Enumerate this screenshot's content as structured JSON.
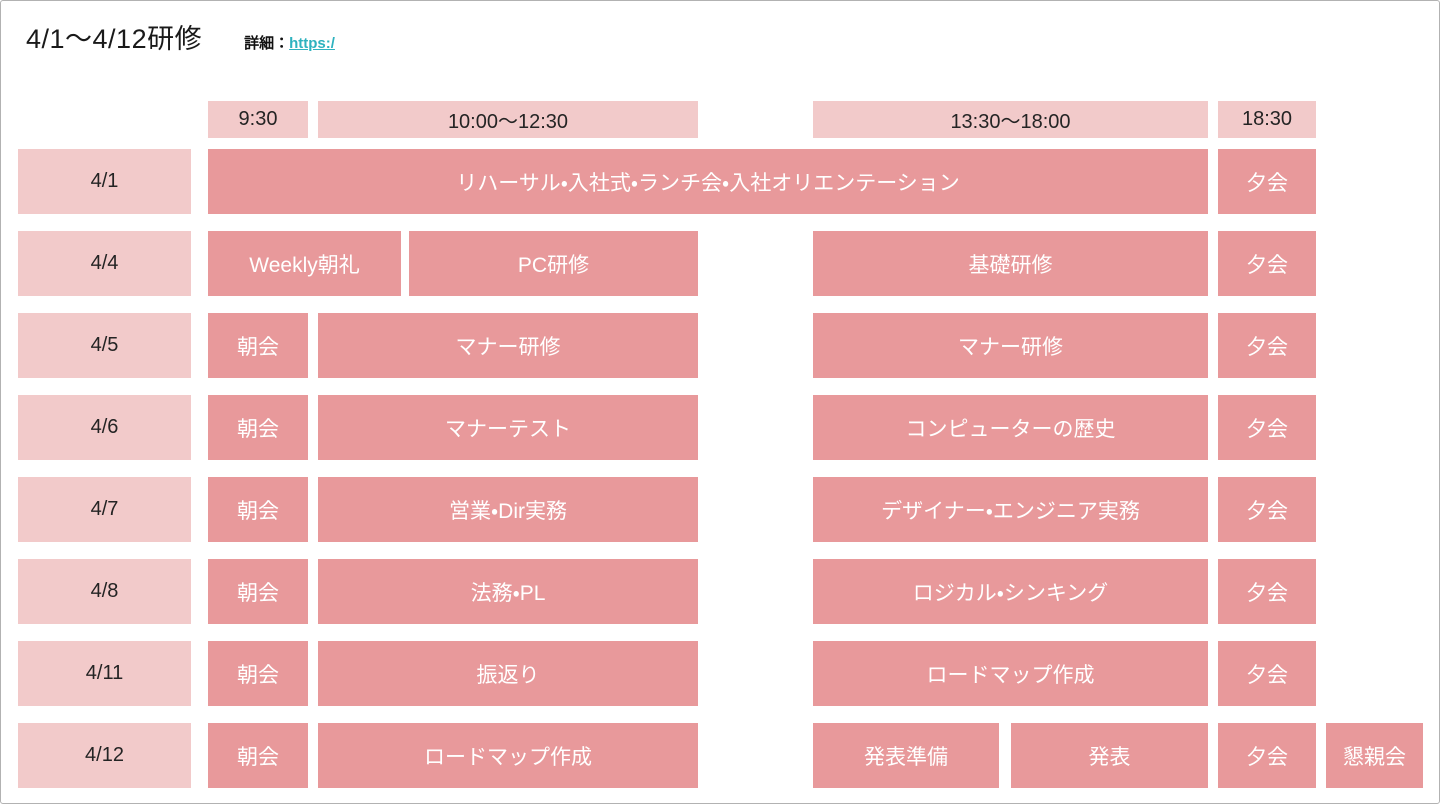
{
  "page": {
    "title": "4/1～4/12研修",
    "detail_label": "詳細：",
    "detail_link": "https:/"
  },
  "palette": {
    "cell_light": "#f2caca",
    "cell_dark": "#e8999b",
    "link_color": "#2eb2bf"
  },
  "header": {
    "cells": [
      {
        "label": "9:30",
        "slot": "morning"
      },
      {
        "label": "10:00～12:30",
        "slot": "am"
      },
      {
        "label": "13:30～18:00",
        "slot": "pm"
      },
      {
        "label": "18:30",
        "slot": "evening"
      }
    ]
  },
  "rows": [
    {
      "date": "4/1",
      "events": [
        {
          "label": "リハーサル・入社式・ランチ会・入社オリエンテーション",
          "slot": "all_day"
        },
        {
          "label": "夕会",
          "slot": "evening"
        }
      ]
    },
    {
      "date": "4/4",
      "events": [
        {
          "label": "Weekly朝礼",
          "slot": "morning_wide"
        },
        {
          "label": "PC研修",
          "slot": "am_short"
        },
        {
          "label": "基礎研修",
          "slot": "pm"
        },
        {
          "label": "夕会",
          "slot": "evening"
        }
      ]
    },
    {
      "date": "4/5",
      "events": [
        {
          "label": "朝会",
          "slot": "morning"
        },
        {
          "label": "マナー研修",
          "slot": "am"
        },
        {
          "label": "マナー研修",
          "slot": "pm"
        },
        {
          "label": "夕会",
          "slot": "evening"
        }
      ]
    },
    {
      "date": "4/6",
      "events": [
        {
          "label": "朝会",
          "slot": "morning"
        },
        {
          "label": "マナーテスト",
          "slot": "am"
        },
        {
          "label": "コンピューターの歴史",
          "slot": "pm"
        },
        {
          "label": "夕会",
          "slot": "evening"
        }
      ]
    },
    {
      "date": "4/7",
      "events": [
        {
          "label": "朝会",
          "slot": "morning"
        },
        {
          "label": "営業・Dir実務",
          "slot": "am"
        },
        {
          "label": "デザイナー・エンジニア実務",
          "slot": "pm"
        },
        {
          "label": "夕会",
          "slot": "evening"
        }
      ]
    },
    {
      "date": "4/8",
      "events": [
        {
          "label": "朝会",
          "slot": "morning"
        },
        {
          "label": "法務・PL",
          "slot": "am"
        },
        {
          "label": "ロジカル・シンキング",
          "slot": "pm"
        },
        {
          "label": "夕会",
          "slot": "evening"
        }
      ]
    },
    {
      "date": "4/11",
      "events": [
        {
          "label": "朝会",
          "slot": "morning"
        },
        {
          "label": "振返り",
          "slot": "am"
        },
        {
          "label": "ロードマップ作成",
          "slot": "pm"
        },
        {
          "label": "夕会",
          "slot": "evening"
        }
      ]
    },
    {
      "date": "4/12",
      "events": [
        {
          "label": "朝会",
          "slot": "morning"
        },
        {
          "label": "ロードマップ作成",
          "slot": "am"
        },
        {
          "label": "発表準備",
          "slot": "pm_first"
        },
        {
          "label": "発表",
          "slot": "pm_second"
        },
        {
          "label": "夕会",
          "slot": "evening"
        },
        {
          "label": "懇親会",
          "slot": "after"
        }
      ]
    }
  ]
}
